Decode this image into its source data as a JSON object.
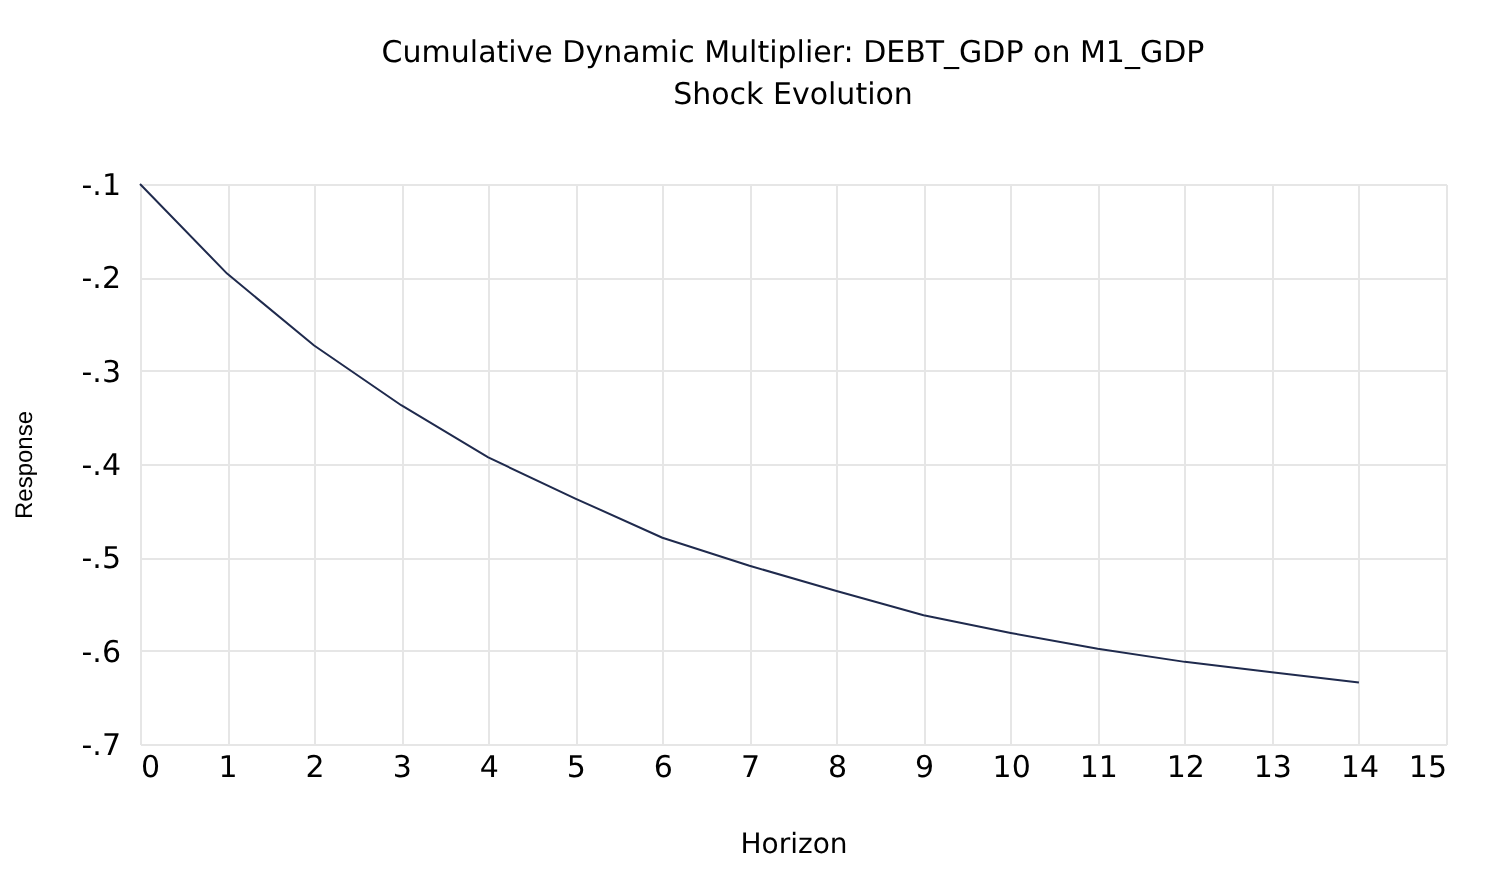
{
  "chart_data": {
    "type": "line",
    "title": "Cumulative Dynamic Multiplier: DEBT_GDP on M1_GDP",
    "subtitle": "Shock Evolution",
    "xlabel": "Horizon",
    "ylabel": "Response",
    "x": [
      0,
      1,
      2,
      3,
      4,
      5,
      6,
      7,
      8,
      9,
      10,
      11,
      12,
      13,
      14
    ],
    "series": [
      {
        "color": "#1f2a4d",
        "values": [
          -0.1,
          -0.196,
          -0.273,
          -0.337,
          -0.393,
          -0.437,
          -0.479,
          -0.509,
          -0.536,
          -0.562,
          -0.581,
          -0.598,
          -0.612,
          -0.623,
          -0.634
        ]
      }
    ],
    "xlim": [
      0,
      15
    ],
    "xticks": [
      0,
      1,
      2,
      3,
      4,
      5,
      6,
      7,
      8,
      9,
      10,
      11,
      12,
      13,
      14,
      15
    ],
    "ylim": [
      -0.7,
      -0.1
    ],
    "yticks": [
      {
        "value": -0.7,
        "label": "-.7"
      },
      {
        "value": -0.6,
        "label": "-.6"
      },
      {
        "value": -0.5,
        "label": "-.5"
      },
      {
        "value": -0.4,
        "label": "-.4"
      },
      {
        "value": -0.3,
        "label": "-.3"
      },
      {
        "value": -0.2,
        "label": "-.2"
      },
      {
        "value": -0.1,
        "label": "-.1"
      }
    ],
    "grid": true,
    "line_style": "solid"
  }
}
